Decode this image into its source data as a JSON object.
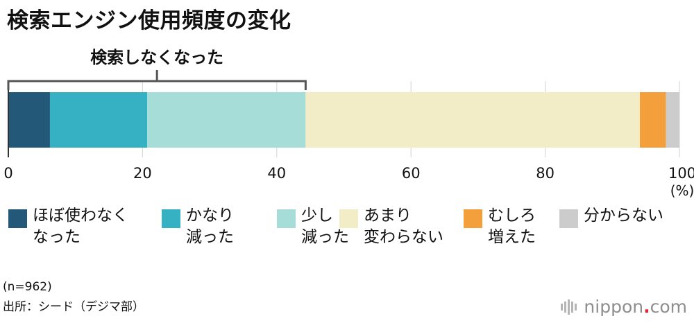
{
  "title": "検索エンジン使用頻度の変化",
  "bracket_label": "検索しなくなった",
  "chart_data": {
    "type": "bar",
    "orientation": "horizontal-stacked-100",
    "title": "検索エンジン使用頻度の変化",
    "unit": "(%)",
    "xlim": [
      0,
      100
    ],
    "xticks": [
      0,
      20,
      40,
      60,
      80,
      100
    ],
    "grid": true,
    "legend_position": "bottom",
    "series": [
      {
        "name": "ほぼ使わなくなった",
        "value": 6.2,
        "color": "#235878"
      },
      {
        "name": "かなり減った",
        "value": 14.5,
        "color": "#35b1c3"
      },
      {
        "name": "少し減った",
        "value": 23.6,
        "color": "#a6ddd8"
      },
      {
        "name": "あまり変わらない",
        "value": 49.8,
        "color": "#f2edc6"
      },
      {
        "name": "むしろ増えた",
        "value": 3.9,
        "color": "#f3a03c"
      },
      {
        "name": "分からない",
        "value": 2.0,
        "color": "#cccccc"
      }
    ],
    "bracket": {
      "label": "検索しなくなった",
      "from": 0,
      "to": 44.3
    }
  },
  "legend": [
    {
      "lines": [
        "ほぼ使わなく",
        "なった"
      ],
      "color": "#235878"
    },
    {
      "lines": [
        "かなり",
        "減った"
      ],
      "color": "#35b1c3"
    },
    {
      "lines": [
        "少し",
        "減った"
      ],
      "color": "#a6ddd8"
    },
    {
      "lines": [
        "あまり",
        "変わらない"
      ],
      "color": "#f2edc6"
    },
    {
      "lines": [
        "むしろ",
        "増えた"
      ],
      "color": "#f3a03c"
    },
    {
      "lines": [
        "分からない"
      ],
      "color": "#cccccc"
    }
  ],
  "footnote": {
    "n": "(n=962)",
    "source": "出所：シード（デジマ部）"
  },
  "brand": {
    "name": "nippon",
    "suffix": ".com",
    "accent": "#e0262e"
  }
}
